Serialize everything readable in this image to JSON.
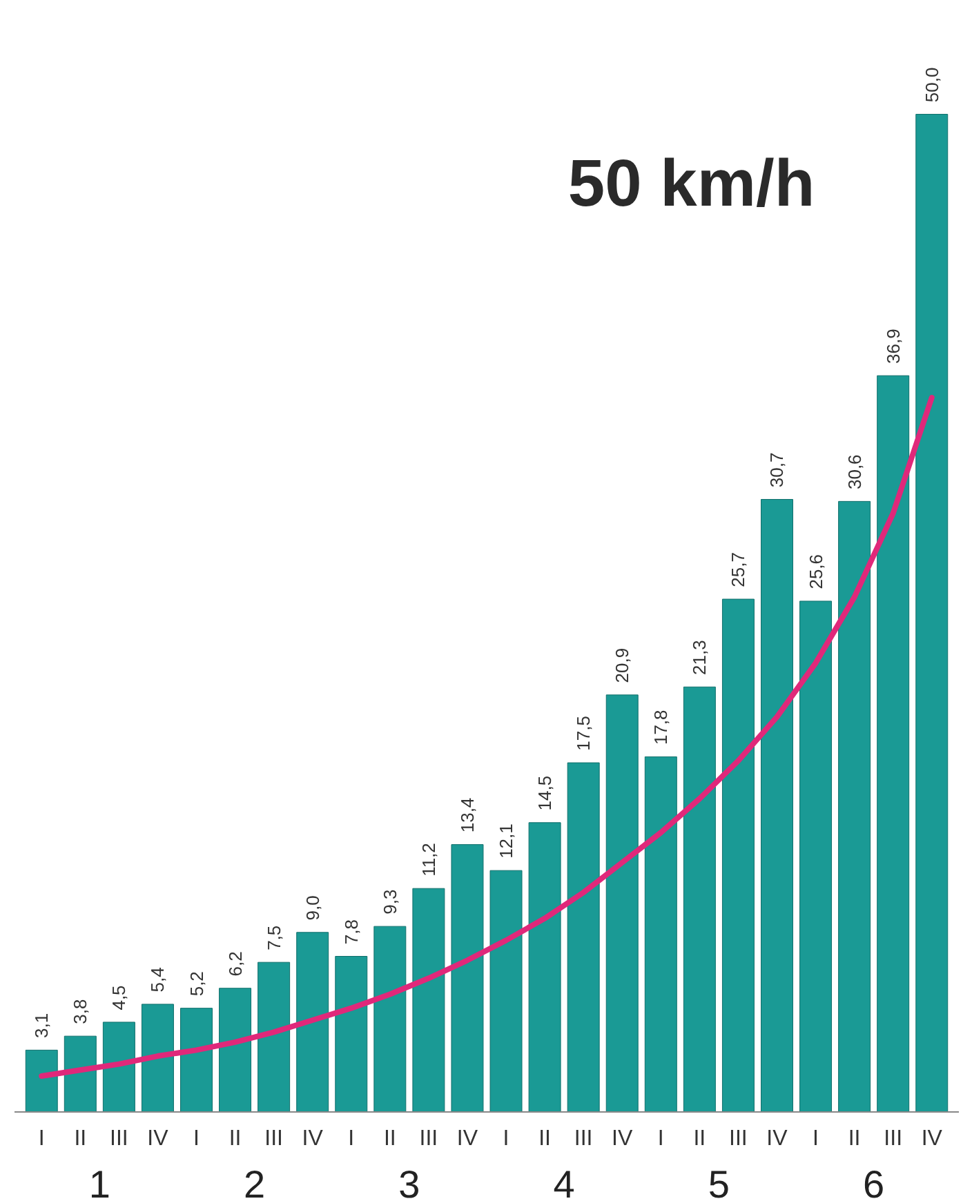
{
  "chart_data": {
    "type": "bar",
    "grid": false,
    "categories": [
      "I",
      "II",
      "III",
      "IV",
      "I",
      "II",
      "III",
      "IV",
      "I",
      "II",
      "III",
      "IV",
      "I",
      "II",
      "III",
      "IV",
      "I",
      "II",
      "III",
      "IV",
      "I",
      "II",
      "III",
      "IV"
    ],
    "series": [
      {
        "color": "#1a9a95",
        "values": [
          3.1,
          3.8,
          4.5,
          5.4,
          5.2,
          6.2,
          7.5,
          9.0,
          7.8,
          9.3,
          11.2,
          13.4,
          12.1,
          14.5,
          17.5,
          20.9,
          17.8,
          21.3,
          25.7,
          30.7,
          25.6,
          30.6,
          36.9,
          50.0
        ],
        "value_labels": [
          "3,1",
          "3,8",
          "4,5",
          "5,4",
          "5,2",
          "6,2",
          "7,5",
          "9,0",
          "7,8",
          "9,3",
          "11,2",
          "13,4",
          "12,1",
          "14,5",
          "17,5",
          "20,9",
          "17,8",
          "21,3",
          "25,7",
          "30,7",
          "25,6",
          "30,6",
          "36,9",
          "50,0"
        ]
      },
      {
        "type": "line",
        "color": "#e0287a",
        "values": [
          1.8,
          2.1,
          2.4,
          2.8,
          3.1,
          3.5,
          4.0,
          4.6,
          5.2,
          5.9,
          6.7,
          7.6,
          8.6,
          9.7,
          11.0,
          12.5,
          14.0,
          15.7,
          17.6,
          19.8,
          22.5,
          25.8,
          30.0,
          35.8
        ]
      }
    ],
    "annotations": [
      "50 km/h",
      "1",
      "2",
      "3",
      "4",
      "5",
      "6"
    ]
  }
}
